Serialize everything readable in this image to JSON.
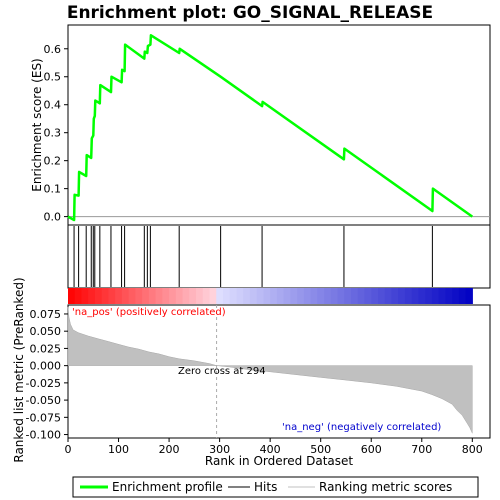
{
  "chart_data": [
    {
      "type": "line",
      "title": "Enrichment plot: GO_SIGNAL_RELEASE",
      "xlabel": "",
      "ylabel": "Enrichment score (ES)",
      "xlim": [
        0,
        835
      ],
      "ylim": [
        -0.03,
        0.685
      ],
      "yticks": [
        "0.0",
        "0.1",
        "0.2",
        "0.3",
        "0.4",
        "0.5",
        "0.6"
      ],
      "ytick_values": [
        0.0,
        0.1,
        0.2,
        0.3,
        0.4,
        0.5,
        0.6
      ],
      "series": [
        {
          "name": "Enrichment profile",
          "color": "#00ff00",
          "x": [
            0,
            12,
            13,
            21,
            22,
            36,
            37,
            46,
            47,
            50,
            51,
            53,
            54,
            63,
            64,
            85,
            86,
            106,
            107,
            112,
            113,
            151,
            152,
            157,
            158,
            163,
            164,
            220,
            221,
            302,
            384,
            385,
            546,
            547,
            721,
            722,
            800
          ],
          "y": [
            0.0,
            -0.012,
            0.078,
            0.075,
            0.16,
            0.145,
            0.22,
            0.21,
            0.28,
            0.29,
            0.35,
            0.36,
            0.415,
            0.405,
            0.47,
            0.445,
            0.5,
            0.48,
            0.525,
            0.52,
            0.615,
            0.565,
            0.59,
            0.585,
            0.61,
            0.615,
            0.648,
            0.585,
            0.6,
            0.5,
            0.395,
            0.41,
            0.205,
            0.243,
            0.02,
            0.1,
            0.0
          ]
        }
      ],
      "hits": [
        12,
        21,
        36,
        46,
        50,
        53,
        63,
        85,
        106,
        112,
        151,
        157,
        163,
        220,
        302,
        384,
        546,
        721
      ]
    },
    {
      "type": "area",
      "xlabel": "Rank in Ordered Dataset",
      "ylabel": "Ranked list metric (PreRanked)",
      "xlim": [
        0,
        835
      ],
      "ylim": [
        -0.105,
        0.088
      ],
      "xticks": [
        "0",
        "100",
        "200",
        "300",
        "400",
        "500",
        "600",
        "700",
        "800"
      ],
      "xtick_values": [
        0,
        100,
        200,
        300,
        400,
        500,
        600,
        700,
        800
      ],
      "yticks": [
        "0.075",
        "0.050",
        "0.025",
        "0.000",
        "-0.025",
        "-0.050",
        "-0.075",
        "-0.100"
      ],
      "ytick_values": [
        0.075,
        0.05,
        0.025,
        0.0,
        -0.025,
        -0.05,
        -0.075,
        -0.1
      ],
      "series": [
        {
          "name": "Ranking metric scores",
          "color": "#c0c0c0",
          "x": [
            0,
            2,
            5,
            10,
            20,
            40,
            60,
            80,
            100,
            120,
            140,
            160,
            180,
            200,
            220,
            250,
            280,
            294,
            320,
            360,
            400,
            450,
            500,
            550,
            600,
            650,
            700,
            720,
            740,
            760,
            770,
            780,
            785,
            790,
            795,
            800
          ],
          "y": [
            0.085,
            0.07,
            0.06,
            0.052,
            0.048,
            0.043,
            0.039,
            0.035,
            0.031,
            0.027,
            0.024,
            0.02,
            0.017,
            0.013,
            0.01,
            0.007,
            0.003,
            0.0,
            -0.002,
            -0.006,
            -0.009,
            -0.013,
            -0.017,
            -0.021,
            -0.025,
            -0.03,
            -0.037,
            -0.042,
            -0.048,
            -0.056,
            -0.065,
            -0.072,
            -0.078,
            -0.084,
            -0.09,
            -0.098
          ]
        }
      ],
      "annotations": {
        "pos_label": "'na_pos' (positively correlated)",
        "neg_label": "'na_neg' (negatively correlated)",
        "zero_cross": "Zero cross at 294",
        "zero_cross_value": 294
      }
    }
  ],
  "legend": {
    "items": [
      {
        "label": "Enrichment profile",
        "color": "#00ff00"
      },
      {
        "label": "Hits",
        "color": "#000000"
      },
      {
        "label": "Ranking metric scores",
        "color": "#c0c0c0"
      }
    ]
  },
  "colors": {
    "frame": "#000000",
    "pos_text": "#ff0000",
    "neg_text": "#0000cd"
  }
}
